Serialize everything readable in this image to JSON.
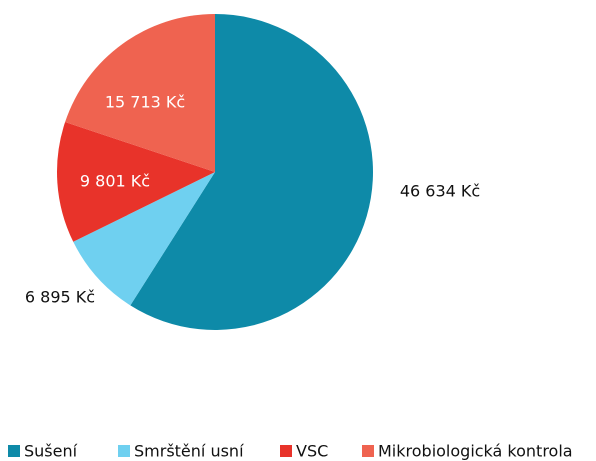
{
  "chart_data": {
    "type": "pie",
    "categories": [
      "Sušení",
      "Smrštění usní",
      "VSC",
      "Mikrobiologická kontrola"
    ],
    "values": [
      46634,
      6895,
      9801,
      15713
    ],
    "value_labels": [
      "46 634 Kč",
      "6 895 Kč",
      "9 801 Kč",
      "15 713 Kč"
    ],
    "colors": [
      "#0e8aa8",
      "#6fd0f0",
      "#e8332a",
      "#ef6350"
    ],
    "legend": "bottom"
  }
}
